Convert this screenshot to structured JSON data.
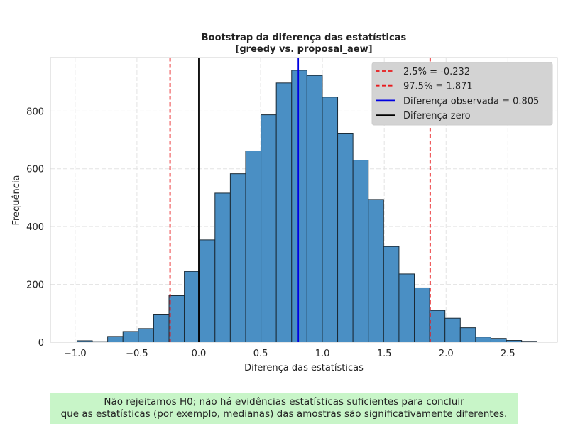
{
  "chart_data": {
    "type": "histogram",
    "title_lines": [
      "Bootstrap da diferença das estatísticas",
      "[greedy vs. proposal_aew]"
    ],
    "xlabel": "Diferença das estatísticas",
    "ylabel": "Frequência",
    "xlim": [
      -1.2,
      2.9
    ],
    "ylim": [
      0,
      985
    ],
    "xticks": [
      -1.0,
      -0.5,
      0.0,
      0.5,
      1.0,
      1.5,
      2.0,
      2.5
    ],
    "xtick_labels": [
      "−1.0",
      "−0.5",
      "0.0",
      "0.5",
      "1.0",
      "1.5",
      "2.0",
      "2.5"
    ],
    "yticks": [
      0,
      200,
      400,
      600,
      800
    ],
    "ytick_labels": [
      "0",
      "200",
      "400",
      "600",
      "800"
    ],
    "grid": true,
    "bar_color": "#4a8fc4",
    "bins": [
      {
        "x0": -0.985,
        "x1": -0.861,
        "count": 5
      },
      {
        "x0": -0.861,
        "x1": -0.737,
        "count": 2
      },
      {
        "x0": -0.737,
        "x1": -0.613,
        "count": 20
      },
      {
        "x0": -0.613,
        "x1": -0.489,
        "count": 37
      },
      {
        "x0": -0.489,
        "x1": -0.365,
        "count": 47
      },
      {
        "x0": -0.365,
        "x1": -0.241,
        "count": 97
      },
      {
        "x0": -0.241,
        "x1": -0.117,
        "count": 161
      },
      {
        "x0": -0.117,
        "x1": 0.007,
        "count": 245
      },
      {
        "x0": 0.007,
        "x1": 0.131,
        "count": 354
      },
      {
        "x0": 0.131,
        "x1": 0.255,
        "count": 516
      },
      {
        "x0": 0.255,
        "x1": 0.379,
        "count": 583
      },
      {
        "x0": 0.379,
        "x1": 0.503,
        "count": 662
      },
      {
        "x0": 0.503,
        "x1": 0.627,
        "count": 787
      },
      {
        "x0": 0.627,
        "x1": 0.751,
        "count": 897
      },
      {
        "x0": 0.751,
        "x1": 0.875,
        "count": 941
      },
      {
        "x0": 0.875,
        "x1": 0.999,
        "count": 923
      },
      {
        "x0": 0.999,
        "x1": 1.123,
        "count": 848
      },
      {
        "x0": 1.123,
        "x1": 1.247,
        "count": 721
      },
      {
        "x0": 1.247,
        "x1": 1.371,
        "count": 630
      },
      {
        "x0": 1.371,
        "x1": 1.495,
        "count": 494
      },
      {
        "x0": 1.495,
        "x1": 1.619,
        "count": 331
      },
      {
        "x0": 1.619,
        "x1": 1.743,
        "count": 236
      },
      {
        "x0": 1.743,
        "x1": 1.867,
        "count": 188
      },
      {
        "x0": 1.867,
        "x1": 1.991,
        "count": 110
      },
      {
        "x0": 1.991,
        "x1": 2.115,
        "count": 83
      },
      {
        "x0": 2.115,
        "x1": 2.239,
        "count": 50
      },
      {
        "x0": 2.239,
        "x1": 2.363,
        "count": 18
      },
      {
        "x0": 2.363,
        "x1": 2.487,
        "count": 13
      },
      {
        "x0": 2.487,
        "x1": 2.611,
        "count": 6
      },
      {
        "x0": 2.611,
        "x1": 2.735,
        "count": 3
      }
    ],
    "vlines": [
      {
        "name": "ci-lower-line",
        "x": -0.232,
        "color": "#e8191c",
        "dash": true,
        "label": "2.5% = -0.232"
      },
      {
        "name": "ci-upper-line",
        "x": 1.871,
        "color": "#e8191c",
        "dash": true,
        "label": "97.5% = 1.871"
      },
      {
        "name": "observed-diff-line",
        "x": 0.805,
        "color": "#0000e0",
        "dash": false,
        "label": "Diferença observada = 0.805"
      },
      {
        "name": "zero-diff-line",
        "x": 0.0,
        "color": "#000000",
        "dash": false,
        "label": "Diferença zero"
      }
    ],
    "legend_position": "top-right"
  },
  "note": {
    "line1": "Não rejeitamos H0; não há evidências estatísticas suficientes para concluir",
    "line2": "que as estatísticas (por exemplo, medianas) das amostras são significativamente diferentes.",
    "background": "#c8f5c8"
  }
}
